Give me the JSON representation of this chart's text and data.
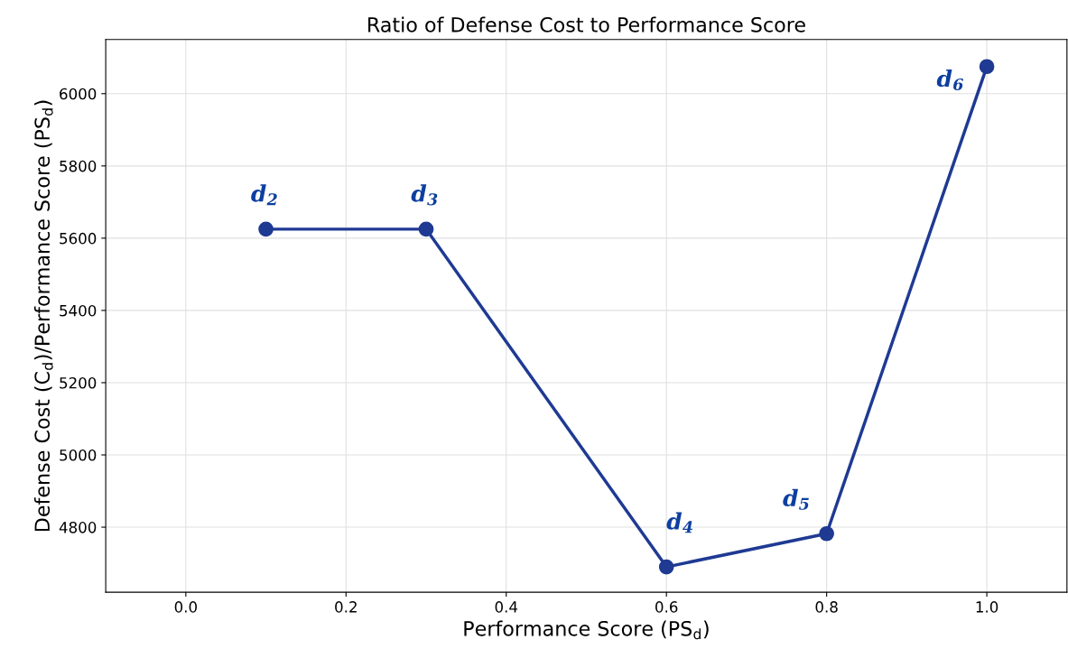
{
  "chart_data": {
    "type": "line",
    "title": "Ratio of Defense Cost to Performance Score",
    "xlabel": "Performance Score (PS$_{d}$)",
    "ylabel": "Defense Cost (C$_{d}$)/Performance Score (PS$_{d}$)",
    "x": [
      0.1,
      0.3,
      0.6,
      0.8,
      1.0
    ],
    "series": [
      {
        "color": "#1f3a93",
        "values": [
          5625,
          5625,
          4690,
          4782,
          6075
        ]
      }
    ],
    "annotations": [
      {
        "text": "d$_{2}$",
        "x": 0.1,
        "y": 5625
      },
      {
        "text": "d$_{3}$",
        "x": 0.3,
        "y": 5625
      },
      {
        "text": "d$_{4}$",
        "x": 0.6,
        "y": 4690
      },
      {
        "text": "d$_{5}$",
        "x": 0.8,
        "y": 4782
      },
      {
        "text": "d$_{6}$",
        "x": 1.0,
        "y": 6075
      }
    ],
    "xlim": [
      -0.1,
      1.1
    ],
    "xticks": [
      {
        "value": 0,
        "label": "0.0"
      },
      0.2,
      0.4,
      0.6,
      0.8,
      {
        "value": 1,
        "label": "1.0"
      }
    ],
    "ylim": [
      4620,
      6150
    ],
    "yticks": [
      4800,
      5000,
      5200,
      5400,
      5600,
      5800,
      6000
    ],
    "grid": true,
    "marker": "circle",
    "line_style": "solid"
  }
}
